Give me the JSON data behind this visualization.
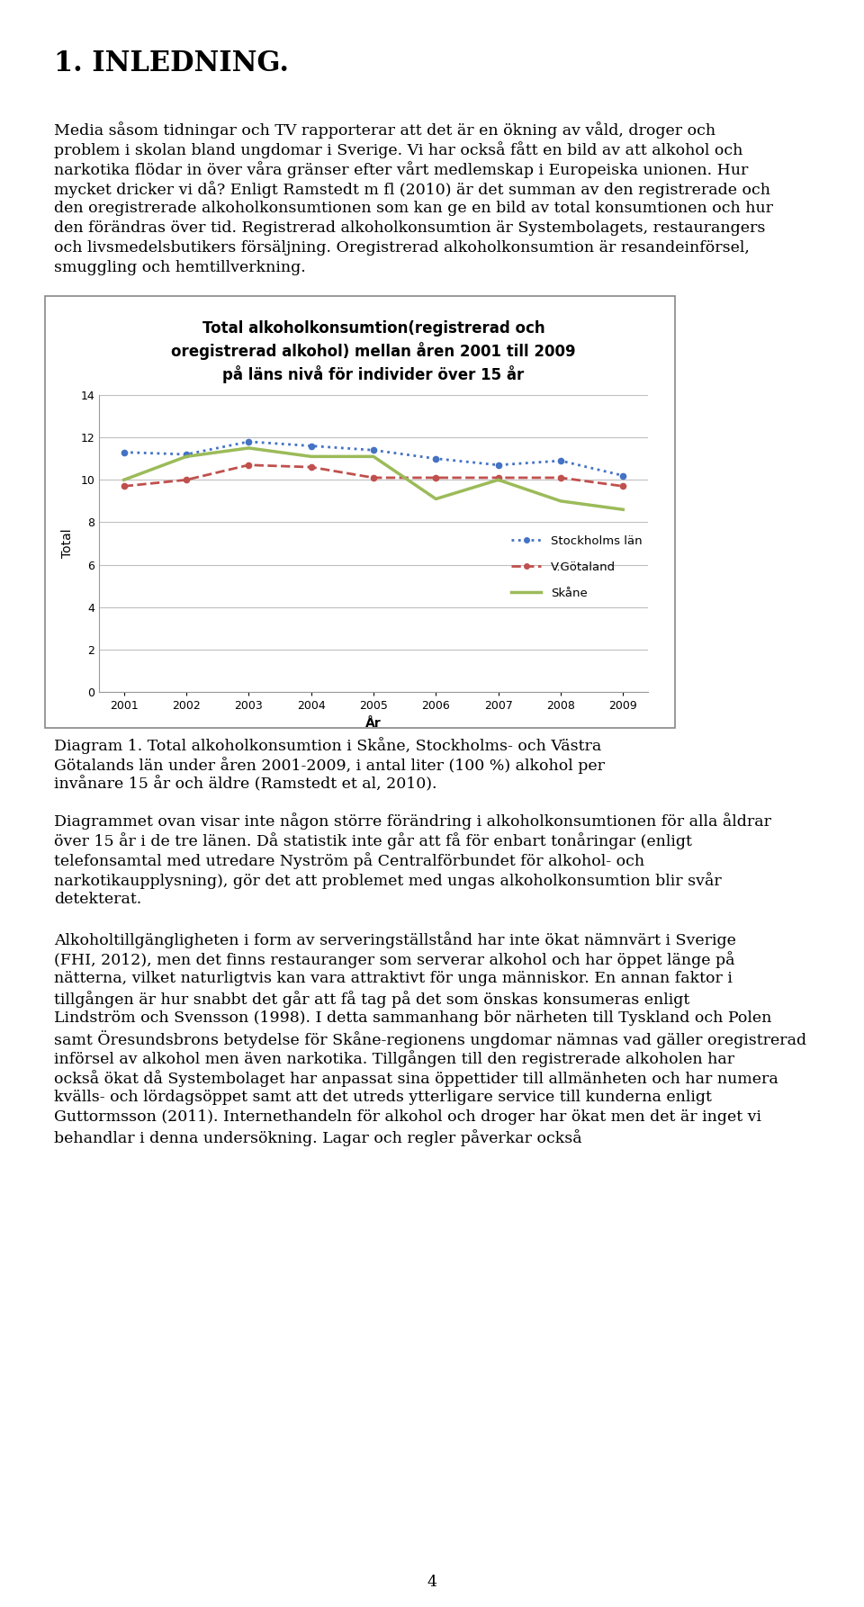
{
  "title_line1": "Total alkoholkonsumtion(registrerad och",
  "title_line2": "oregistrerad alkohol) mellan åren 2001 till 2009",
  "title_line3": "på läns nivå för individer över 15 år",
  "xlabel": "År",
  "ylabel": "Total",
  "years": [
    2001,
    2002,
    2003,
    2004,
    2005,
    2006,
    2007,
    2008,
    2009
  ],
  "stockholms_lan": [
    11.3,
    11.2,
    11.8,
    11.6,
    11.4,
    11.0,
    10.7,
    10.9,
    10.2
  ],
  "v_gotaland": [
    9.7,
    10.0,
    10.7,
    10.6,
    10.1,
    10.1,
    10.1,
    10.1,
    9.7
  ],
  "skane": [
    10.0,
    11.1,
    11.5,
    11.1,
    11.1,
    9.1,
    10.0,
    9.0,
    8.6
  ],
  "ylim": [
    0,
    14
  ],
  "yticks": [
    0,
    2,
    4,
    6,
    8,
    10,
    12,
    14
  ],
  "color_stockholm": "#4472C4",
  "color_vgotaland": "#C0504D",
  "color_skane": "#9BBB59",
  "legend_stockholm": "Stockholms län",
  "legend_vgotaland": "V.Götaland",
  "legend_skane": "Skåne",
  "grid_color": "#C0C0C0",
  "title_fontsize": 12,
  "axis_fontsize": 10,
  "tick_fontsize": 9,
  "heading": "1. INLEDNING.",
  "para1": "Media såsom tidningar och TV rapporterar att det är en ökning av våld, droger och problem i skolan bland ungdomar i Sverige. Vi har också fått en bild av att alkohol och narkotika flödar in över våra gränser efter vårt medlemskap i Europeiska unionen. Hur mycket dricker vi då? Enligt Ramstedt m fl (2010) är det summan av den registrerade och den oregistrerade alkoholkonsumtionen som kan ge en bild av total konsumtionen och hur den förändras över tid. Registrerad alkoholkonsumtion är Systembolagets, restaurangers och livsmedelsbutikers försäljning. Oregistrerad alkoholkonsumtion är resandeinförsel, smuggling och hemtillverkning.",
  "caption": "Diagram 1. Total alkoholkonsumtion i Skåne, Stockholms- och Västra Götalands län under åren 2001-2009, i antal liter (100 %) alkohol per invånare 15 år och äldre (Ramstedt et al, 2010).",
  "para2": "Diagrammet ovan visar inte någon större förändring i alkoholkonsumtionen för alla åldrar över 15 år i de tre länen. Då statistik inte går att få för enbart tonåringar (enligt telefonsamtal med utredare Nyström på Centralförbundet för alkohol- och narkotikaupplysning), gör det att problemet med ungas alkoholkonsumtion blir svår detekterat.",
  "para3": "Alkoholtillgängligheten i form av serveringställstånd har inte ökat nämnvärt i Sverige (FHI, 2012), men det finns restauranger som serverar alkohol och har öppet länge på nätterna, vilket naturligtvis kan vara attraktivt för unga människor. En annan faktor i tillgången är hur snabbt det går att få tag på det som önskas konsumeras enligt Lindström och Svensson (1998). I detta sammanhang bör närheten till Tyskland och Polen samt Öresundsbrons betydelse för Skåne-regionens ungdomar nämnas vad gäller oregistrerad införsel av alkohol men även narkotika. Tillgången till den registrerade alkoholen har också ökat då Systembolaget har anpassat sina öppettider till allmänheten och har numera kvälls- och lördagsöppet samt att det utreds ytterligare service till kunderna enligt Guttormsson (2011). Internethandeln för alkohol och droger har ökat men det är inget vi behandlar i denna undersökning. Lagar och regler påverkar också",
  "page_number": "4"
}
